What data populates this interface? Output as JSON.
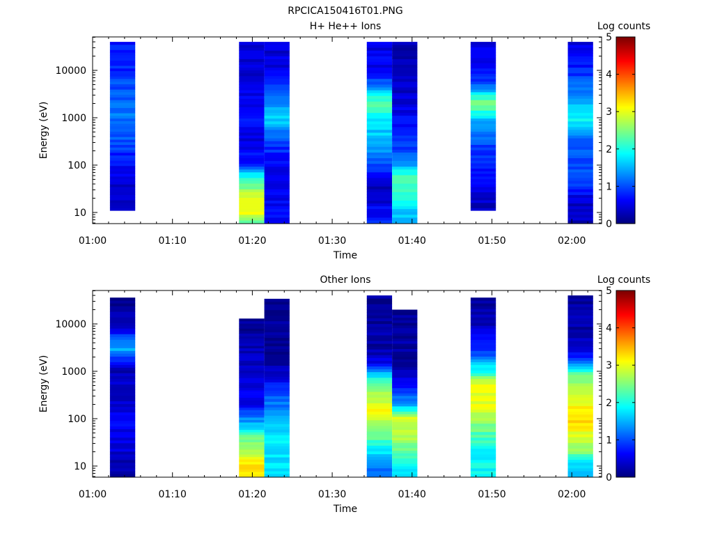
{
  "figure_title": "RPCICA150416T01.PNG",
  "chart_data": [
    {
      "type": "heatmap",
      "title": "H+ He++ Ions",
      "xlabel": "Time",
      "ylabel": "Energy (eV)",
      "x_tick_labels": [
        "01:00",
        "01:10",
        "01:20",
        "01:30",
        "01:40",
        "01:50",
        "02:00"
      ],
      "y_tick_labels": [
        "10",
        "100",
        "1000",
        "10000"
      ],
      "y_scale": "log",
      "colorbar_label": "Log counts",
      "colorbar_ticks": [
        "0",
        "1",
        "2",
        "3",
        "4",
        "5"
      ],
      "colorbar_range": [
        0,
        5
      ],
      "time_blocks": [
        {
          "start": "01:02:10",
          "end": "01:05:20",
          "e_min": 11,
          "e_max": 40000,
          "profile": [
            [
              11,
              0.3
            ],
            [
              30,
              0.4
            ],
            [
              100,
              0.6
            ],
            [
              300,
              1.0
            ],
            [
              1000,
              1.2
            ],
            [
              3000,
              1.1
            ],
            [
              10000,
              0.8
            ],
            [
              40000,
              0.7
            ]
          ]
        },
        {
          "start": "01:18:20",
          "end": "01:21:30",
          "e_min": 6,
          "e_max": 40000,
          "profile": [
            [
              6,
              2.4
            ],
            [
              10,
              3.0
            ],
            [
              20,
              3.0
            ],
            [
              40,
              2.3
            ],
            [
              70,
              1.6
            ],
            [
              100,
              0.8
            ],
            [
              300,
              0.5
            ],
            [
              1000,
              0.7
            ],
            [
              3000,
              0.5
            ],
            [
              10000,
              0.4
            ],
            [
              40000,
              0.4
            ]
          ]
        },
        {
          "start": "01:21:30",
          "end": "01:24:40",
          "e_min": 6,
          "e_max": 40000,
          "profile": [
            [
              6,
              0.6
            ],
            [
              10,
              0.6
            ],
            [
              30,
              0.6
            ],
            [
              100,
              0.6
            ],
            [
              300,
              0.9
            ],
            [
              1000,
              1.7
            ],
            [
              3000,
              1.2
            ],
            [
              10000,
              0.5
            ],
            [
              40000,
              0.4
            ]
          ]
        },
        {
          "start": "01:34:20",
          "end": "01:37:30",
          "e_min": 6,
          "e_max": 40000,
          "profile": [
            [
              6,
              0.8
            ],
            [
              30,
              0.3
            ],
            [
              100,
              0.9
            ],
            [
              300,
              1.5
            ],
            [
              1000,
              1.8
            ],
            [
              2000,
              2.4
            ],
            [
              5000,
              1.2
            ],
            [
              10000,
              0.6
            ],
            [
              40000,
              0.5
            ]
          ]
        },
        {
          "start": "01:37:30",
          "end": "01:40:40",
          "e_min": 6,
          "e_max": 40000,
          "profile": [
            [
              6,
              1.6
            ],
            [
              10,
              1.6
            ],
            [
              30,
              2.1
            ],
            [
              60,
              2.3
            ],
            [
              100,
              1.3
            ],
            [
              300,
              0.8
            ],
            [
              1000,
              0.6
            ],
            [
              3000,
              0.4
            ],
            [
              10000,
              0.3
            ],
            [
              40000,
              0.3
            ]
          ]
        },
        {
          "start": "01:47:20",
          "end": "01:50:30",
          "e_min": 11,
          "e_max": 40000,
          "profile": [
            [
              11,
              0.3
            ],
            [
              30,
              0.5
            ],
            [
              100,
              0.7
            ],
            [
              300,
              1.0
            ],
            [
              1000,
              1.6
            ],
            [
              2000,
              2.6
            ],
            [
              5000,
              1.0
            ],
            [
              10000,
              0.6
            ],
            [
              40000,
              0.5
            ]
          ]
        },
        {
          "start": "01:59:30",
          "end": "02:02:40",
          "e_min": 6,
          "e_max": 40000,
          "profile": [
            [
              6,
              0.3
            ],
            [
              20,
              0.4
            ],
            [
              30,
              0.8
            ],
            [
              100,
              1.0
            ],
            [
              300,
              1.1
            ],
            [
              1000,
              1.9
            ],
            [
              3000,
              1.4
            ],
            [
              10000,
              0.8
            ],
            [
              40000,
              0.5
            ]
          ]
        }
      ]
    },
    {
      "type": "heatmap",
      "title": "Other Ions",
      "xlabel": "Time",
      "ylabel": "Energy (eV)",
      "x_tick_labels": [
        "01:00",
        "01:10",
        "01:20",
        "01:30",
        "01:40",
        "01:50",
        "02:00"
      ],
      "y_tick_labels": [
        "10",
        "100",
        "1000",
        "10000"
      ],
      "y_scale": "log",
      "colorbar_label": "Log counts",
      "colorbar_ticks": [
        "0",
        "1",
        "2",
        "3",
        "4",
        "5"
      ],
      "colorbar_range": [
        0,
        5
      ],
      "time_blocks": [
        {
          "start": "01:02:10",
          "end": "01:05:20",
          "e_min": 6,
          "e_max": 36000,
          "profile": [
            [
              6,
              0.1
            ],
            [
              10,
              0.2
            ],
            [
              30,
              0.5
            ],
            [
              100,
              0.6
            ],
            [
              300,
              0.4
            ],
            [
              1000,
              0.2
            ],
            [
              3000,
              1.5
            ],
            [
              5000,
              1.0
            ],
            [
              10000,
              0.2
            ],
            [
              36000,
              0.1
            ]
          ]
        },
        {
          "start": "01:18:20",
          "end": "01:21:30",
          "e_min": 6,
          "e_max": 13000,
          "profile": [
            [
              6,
              3.3
            ],
            [
              10,
              3.4
            ],
            [
              20,
              2.8
            ],
            [
              40,
              2.4
            ],
            [
              80,
              1.5
            ],
            [
              200,
              0.6
            ],
            [
              1000,
              0.3
            ],
            [
              3000,
              0.3
            ],
            [
              13000,
              0.1
            ]
          ]
        },
        {
          "start": "01:21:30",
          "end": "01:24:40",
          "e_min": 6,
          "e_max": 34000,
          "profile": [
            [
              6,
              1.7
            ],
            [
              10,
              1.7
            ],
            [
              30,
              1.8
            ],
            [
              100,
              1.6
            ],
            [
              300,
              1.0
            ],
            [
              1000,
              0.3
            ],
            [
              3000,
              0.1
            ],
            [
              34000,
              0.1
            ]
          ]
        },
        {
          "start": "01:34:20",
          "end": "01:37:30",
          "e_min": 6,
          "e_max": 40000,
          "profile": [
            [
              6,
              1.0
            ],
            [
              20,
              1.8
            ],
            [
              60,
              2.6
            ],
            [
              150,
              3.1
            ],
            [
              400,
              2.6
            ],
            [
              800,
              1.8
            ],
            [
              1500,
              0.5
            ],
            [
              3000,
              0.2
            ],
            [
              40000,
              0.1
            ]
          ]
        },
        {
          "start": "01:37:30",
          "end": "01:40:40",
          "e_min": 6,
          "e_max": 20000,
          "profile": [
            [
              6,
              1.5
            ],
            [
              15,
              2.2
            ],
            [
              40,
              2.7
            ],
            [
              100,
              3.0
            ],
            [
              200,
              1.5
            ],
            [
              500,
              0.6
            ],
            [
              1000,
              0.2
            ],
            [
              20000,
              0.1
            ]
          ]
        },
        {
          "start": "01:47:20",
          "end": "01:50:30",
          "e_min": 6,
          "e_max": 36000,
          "profile": [
            [
              6,
              1.9
            ],
            [
              20,
              1.9
            ],
            [
              50,
              2.3
            ],
            [
              200,
              3.0
            ],
            [
              500,
              3.1
            ],
            [
              1000,
              2.0
            ],
            [
              3000,
              0.8
            ],
            [
              10000,
              0.3
            ],
            [
              36000,
              0.1
            ]
          ]
        },
        {
          "start": "01:59:30",
          "end": "02:02:40",
          "e_min": 6,
          "e_max": 40000,
          "profile": [
            [
              6,
              1.5
            ],
            [
              10,
              1.6
            ],
            [
              20,
              2.5
            ],
            [
              50,
              3.0
            ],
            [
              100,
              3.3
            ],
            [
              300,
              3.0
            ],
            [
              800,
              2.5
            ],
            [
              1500,
              1.3
            ],
            [
              3000,
              0.3
            ],
            [
              40000,
              0.1
            ]
          ]
        }
      ]
    }
  ]
}
